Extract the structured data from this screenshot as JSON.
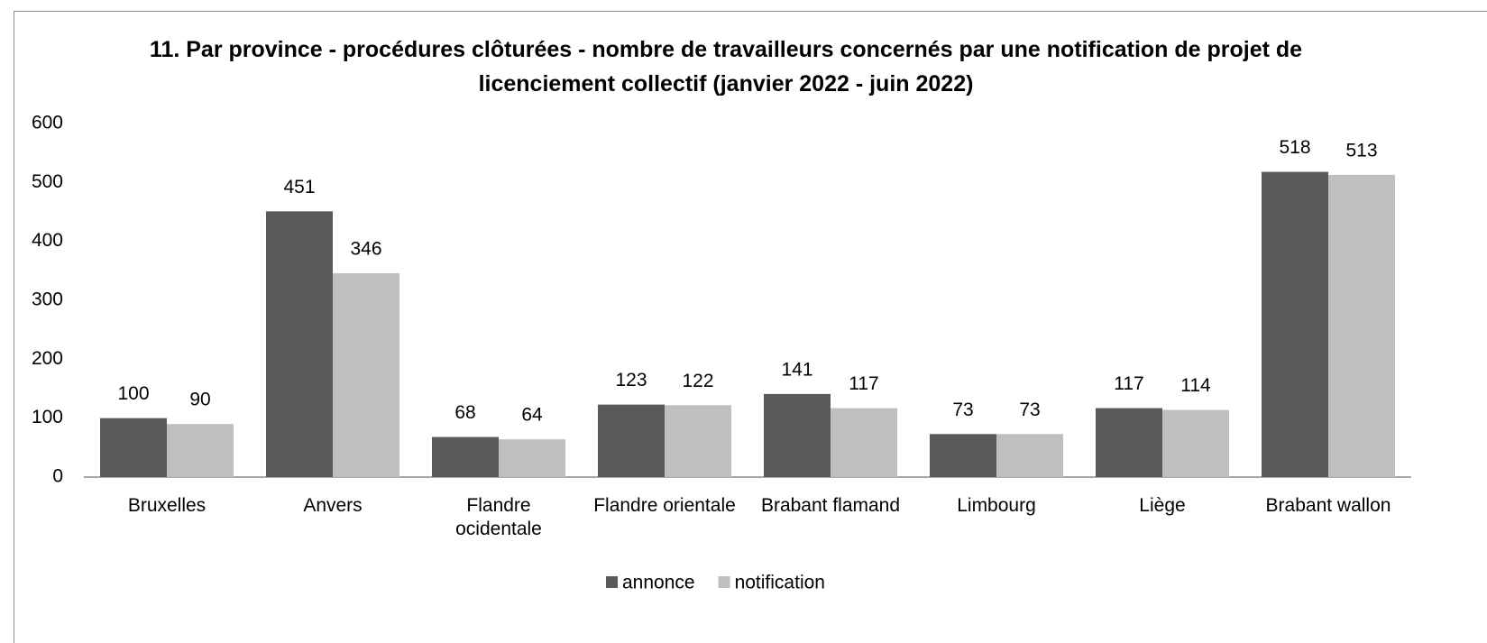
{
  "chart_data": {
    "type": "bar",
    "title": "11. Par province - procédures clôturées - nombre de travailleurs concernés par une notification de projet de licenciement collectif (janvier 2022 - juin 2022)",
    "categories": [
      "Bruxelles",
      "Anvers",
      "Flandre ocidentale",
      "Flandre orientale",
      "Brabant flamand",
      "Limbourg",
      "Liège",
      "Brabant wallon"
    ],
    "series": [
      {
        "name": "annonce",
        "color": "#595959",
        "values": [
          100,
          451,
          68,
          123,
          141,
          73,
          117,
          518
        ]
      },
      {
        "name": "notification",
        "color": "#bfbfbf",
        "values": [
          90,
          346,
          64,
          122,
          117,
          73,
          114,
          513
        ]
      }
    ],
    "ylim": [
      0,
      600
    ],
    "yticks": [
      0,
      100,
      200,
      300,
      400,
      500,
      600
    ],
    "grid": false,
    "legend": "bottom"
  }
}
